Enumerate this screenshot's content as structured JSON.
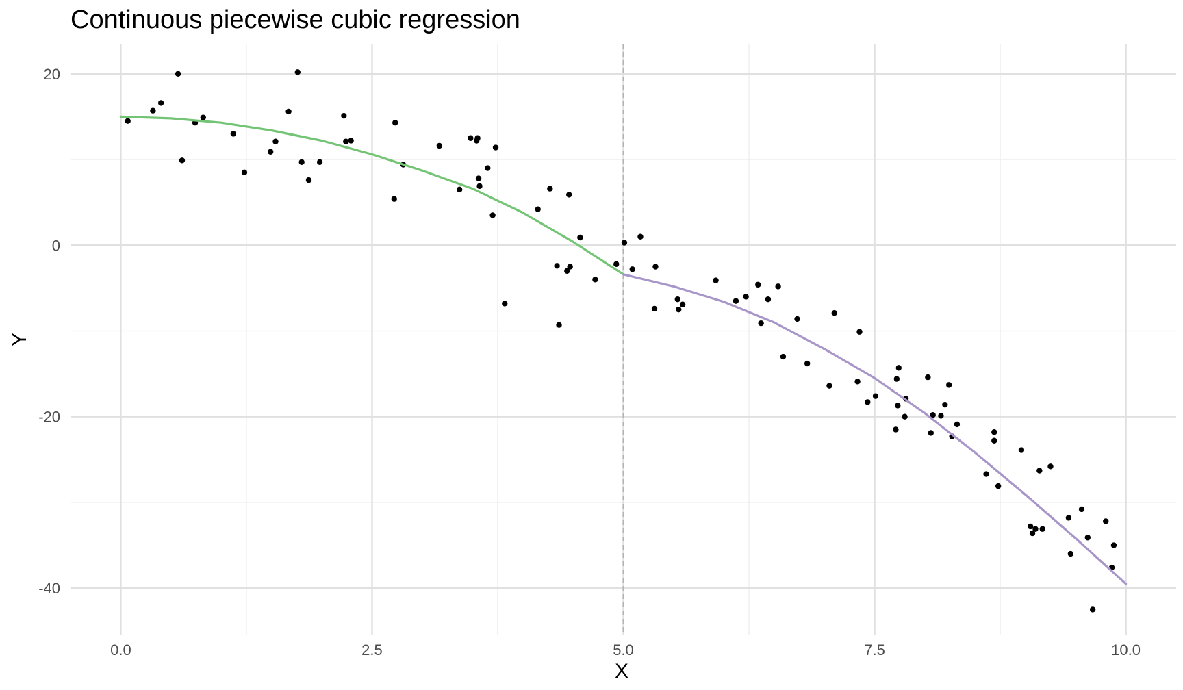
{
  "chart_data": {
    "type": "scatter",
    "title": "Continuous piecewise cubic regression",
    "xlabel": "X",
    "ylabel": "Y",
    "xlim": [
      -0.5,
      10.5
    ],
    "ylim": [
      -45.5,
      23.5
    ],
    "x_ticks": [
      {
        "value": 0,
        "label": "0.0"
      },
      {
        "value": 2.5,
        "label": "2.5"
      },
      {
        "value": 5,
        "label": "5.0"
      },
      {
        "value": 7.5,
        "label": "7.5"
      },
      {
        "value": 10,
        "label": "10.0"
      }
    ],
    "y_ticks": [
      {
        "value": 20,
        "label": "20"
      },
      {
        "value": 0,
        "label": "0"
      },
      {
        "value": -20,
        "label": "-20"
      },
      {
        "value": -40,
        "label": "-40"
      }
    ],
    "grid": true,
    "knot": 5.0,
    "fit_segments": [
      {
        "color": "#74c476",
        "x": [
          0.0,
          0.5,
          1.0,
          1.5,
          2.0,
          2.5,
          3.0,
          3.5,
          4.0,
          4.5,
          5.0
        ],
        "y": [
          15.0,
          14.8,
          14.3,
          13.4,
          12.2,
          10.6,
          8.7,
          6.6,
          3.8,
          0.4,
          -3.4
        ]
      },
      {
        "color": "#a896c9",
        "x": [
          5.0,
          5.5,
          6.0,
          6.5,
          7.0,
          7.5,
          8.0,
          8.5,
          9.0,
          9.5,
          10.0
        ],
        "y": [
          -3.4,
          -4.8,
          -6.6,
          -9.0,
          -12.1,
          -15.5,
          -19.6,
          -24.2,
          -29.1,
          -34.2,
          -39.5
        ]
      }
    ],
    "point_color": "#000000",
    "points": [
      [
        0.07,
        14.5
      ],
      [
        0.32,
        15.7
      ],
      [
        0.4,
        16.6
      ],
      [
        0.57,
        20.0
      ],
      [
        0.61,
        9.9
      ],
      [
        0.74,
        14.3
      ],
      [
        0.82,
        14.9
      ],
      [
        1.12,
        13.0
      ],
      [
        1.23,
        8.5
      ],
      [
        1.49,
        10.9
      ],
      [
        1.54,
        12.1
      ],
      [
        1.67,
        15.6
      ],
      [
        1.76,
        20.2
      ],
      [
        1.8,
        9.7
      ],
      [
        1.87,
        7.6
      ],
      [
        1.98,
        9.7
      ],
      [
        2.22,
        15.1
      ],
      [
        2.24,
        12.1
      ],
      [
        2.29,
        12.2
      ],
      [
        2.72,
        5.4
      ],
      [
        2.73,
        14.3
      ],
      [
        2.81,
        9.4
      ],
      [
        3.17,
        11.6
      ],
      [
        3.37,
        6.5
      ],
      [
        3.48,
        12.5
      ],
      [
        3.54,
        12.2
      ],
      [
        3.55,
        12.5
      ],
      [
        3.56,
        7.8
      ],
      [
        3.57,
        6.9
      ],
      [
        3.65,
        9.0
      ],
      [
        3.7,
        3.5
      ],
      [
        3.73,
        11.4
      ],
      [
        3.82,
        -6.8
      ],
      [
        4.15,
        4.2
      ],
      [
        4.27,
        6.6
      ],
      [
        4.34,
        -2.4
      ],
      [
        4.36,
        -9.3
      ],
      [
        4.44,
        -3.0
      ],
      [
        4.46,
        5.9
      ],
      [
        4.47,
        -2.5
      ],
      [
        4.57,
        0.9
      ],
      [
        4.72,
        -4.0
      ],
      [
        4.93,
        -2.2
      ],
      [
        5.01,
        0.3
      ],
      [
        5.09,
        -2.8
      ],
      [
        5.17,
        1.0
      ],
      [
        5.32,
        -2.5
      ],
      [
        5.31,
        -7.4
      ],
      [
        5.54,
        -6.3
      ],
      [
        5.55,
        -7.5
      ],
      [
        5.59,
        -6.9
      ],
      [
        5.92,
        -4.1
      ],
      [
        6.12,
        -6.5
      ],
      [
        6.22,
        -6.0
      ],
      [
        6.34,
        -4.6
      ],
      [
        6.37,
        -9.1
      ],
      [
        6.44,
        -6.3
      ],
      [
        6.54,
        -4.8
      ],
      [
        6.59,
        -13.0
      ],
      [
        6.73,
        -8.6
      ],
      [
        6.83,
        -13.8
      ],
      [
        7.05,
        -16.4
      ],
      [
        7.1,
        -7.9
      ],
      [
        7.33,
        -15.9
      ],
      [
        7.35,
        -10.1
      ],
      [
        7.43,
        -18.3
      ],
      [
        7.51,
        -17.6
      ],
      [
        7.71,
        -21.5
      ],
      [
        7.72,
        -15.6
      ],
      [
        7.73,
        -18.7
      ],
      [
        7.74,
        -14.3
      ],
      [
        7.8,
        -20.0
      ],
      [
        7.81,
        -17.9
      ],
      [
        8.03,
        -15.4
      ],
      [
        8.06,
        -21.9
      ],
      [
        8.08,
        -19.8
      ],
      [
        8.16,
        -19.9
      ],
      [
        8.2,
        -18.6
      ],
      [
        8.24,
        -16.3
      ],
      [
        8.27,
        -22.3
      ],
      [
        8.32,
        -20.9
      ],
      [
        8.61,
        -26.7
      ],
      [
        8.69,
        -21.8
      ],
      [
        8.69,
        -22.8
      ],
      [
        8.73,
        -28.1
      ],
      [
        8.96,
        -23.9
      ],
      [
        9.05,
        -32.8
      ],
      [
        9.07,
        -33.6
      ],
      [
        9.1,
        -33.1
      ],
      [
        9.14,
        -26.3
      ],
      [
        9.17,
        -33.1
      ],
      [
        9.25,
        -25.8
      ],
      [
        9.43,
        -31.8
      ],
      [
        9.45,
        -36.0
      ],
      [
        9.56,
        -30.8
      ],
      [
        9.62,
        -34.1
      ],
      [
        9.67,
        -42.5
      ],
      [
        9.8,
        -32.2
      ],
      [
        9.86,
        -37.6
      ],
      [
        9.88,
        -35.0
      ]
    ]
  }
}
